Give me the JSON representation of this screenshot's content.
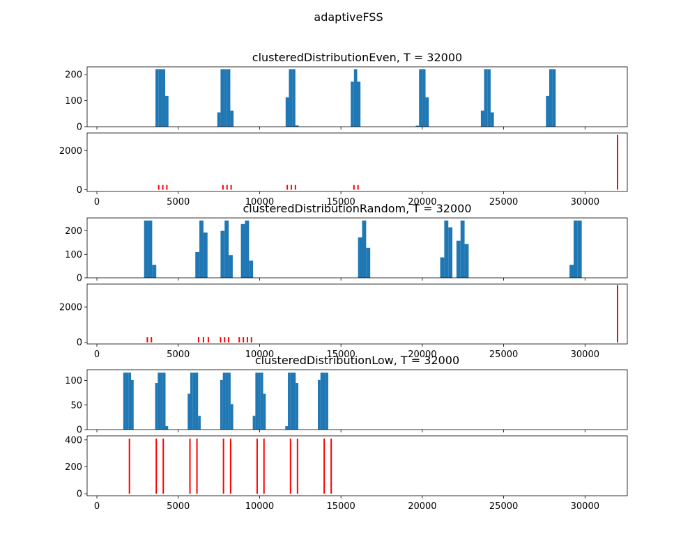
{
  "figure": {
    "suptitle": "adaptiveFSS"
  },
  "colors": {
    "bar": "#1f77b4",
    "stem": "#ff0000",
    "axis": "#000000"
  },
  "chart_data": [
    {
      "type": "bar",
      "title": "clusteredDistributionEven, T = 32000",
      "xlim": [
        -600,
        32600
      ],
      "ylim": [
        0,
        230
      ],
      "yticks": [
        0,
        100,
        200
      ],
      "xticks": [
        0,
        5000,
        10000,
        15000,
        20000,
        25000,
        30000
      ],
      "show_xtick_labels": false,
      "bin_width": 200,
      "bars": [
        {
          "x": 3600,
          "y": 221
        },
        {
          "x": 3800,
          "y": 221
        },
        {
          "x": 4000,
          "y": 221
        },
        {
          "x": 4200,
          "y": 118
        },
        {
          "x": 7400,
          "y": 55
        },
        {
          "x": 7600,
          "y": 221
        },
        {
          "x": 7800,
          "y": 221
        },
        {
          "x": 8000,
          "y": 221
        },
        {
          "x": 8200,
          "y": 62
        },
        {
          "x": 11600,
          "y": 113
        },
        {
          "x": 11800,
          "y": 221
        },
        {
          "x": 12000,
          "y": 221
        },
        {
          "x": 12200,
          "y": 5
        },
        {
          "x": 15600,
          "y": 173
        },
        {
          "x": 15800,
          "y": 221
        },
        {
          "x": 16000,
          "y": 173
        },
        {
          "x": 19600,
          "y": 4
        },
        {
          "x": 19800,
          "y": 221
        },
        {
          "x": 20000,
          "y": 221
        },
        {
          "x": 20200,
          "y": 113
        },
        {
          "x": 23600,
          "y": 62
        },
        {
          "x": 23800,
          "y": 221
        },
        {
          "x": 24000,
          "y": 221
        },
        {
          "x": 24200,
          "y": 55
        },
        {
          "x": 27600,
          "y": 118
        },
        {
          "x": 27800,
          "y": 221
        },
        {
          "x": 28000,
          "y": 221
        }
      ]
    },
    {
      "type": "stem",
      "xlim": [
        -600,
        32600
      ],
      "ylim": [
        -90,
        2900
      ],
      "yticks": [
        0,
        2000
      ],
      "xticks": [
        0,
        5000,
        10000,
        15000,
        20000,
        25000,
        30000
      ],
      "show_xtick_labels": true,
      "lines": [
        {
          "x": 3800,
          "y": 240
        },
        {
          "x": 4050,
          "y": 240
        },
        {
          "x": 4300,
          "y": 240
        },
        {
          "x": 7750,
          "y": 240
        },
        {
          "x": 8000,
          "y": 240
        },
        {
          "x": 8250,
          "y": 240
        },
        {
          "x": 11700,
          "y": 240
        },
        {
          "x": 11950,
          "y": 240
        },
        {
          "x": 12200,
          "y": 240
        },
        {
          "x": 15800,
          "y": 240
        },
        {
          "x": 16050,
          "y": 240
        },
        {
          "x": 32000,
          "y": 2800
        }
      ]
    },
    {
      "type": "bar",
      "title": "clusteredDistributionRandom, T = 32000",
      "xlim": [
        -600,
        32600
      ],
      "ylim": [
        0,
        255
      ],
      "yticks": [
        0,
        100,
        200
      ],
      "xticks": [
        0,
        5000,
        10000,
        15000,
        20000,
        25000,
        30000
      ],
      "show_xtick_labels": false,
      "bin_width": 250,
      "bars": [
        {
          "x": 2900,
          "y": 244
        },
        {
          "x": 3150,
          "y": 244
        },
        {
          "x": 3400,
          "y": 55
        },
        {
          "x": 6050,
          "y": 110
        },
        {
          "x": 6300,
          "y": 244
        },
        {
          "x": 6550,
          "y": 193
        },
        {
          "x": 7600,
          "y": 200
        },
        {
          "x": 7850,
          "y": 244
        },
        {
          "x": 8100,
          "y": 97
        },
        {
          "x": 8850,
          "y": 229
        },
        {
          "x": 9100,
          "y": 244
        },
        {
          "x": 9350,
          "y": 73
        },
        {
          "x": 16050,
          "y": 172
        },
        {
          "x": 16300,
          "y": 244
        },
        {
          "x": 16550,
          "y": 128
        },
        {
          "x": 21100,
          "y": 87
        },
        {
          "x": 21350,
          "y": 244
        },
        {
          "x": 21600,
          "y": 215
        },
        {
          "x": 22100,
          "y": 158
        },
        {
          "x": 22350,
          "y": 244
        },
        {
          "x": 22600,
          "y": 144
        },
        {
          "x": 29050,
          "y": 55
        },
        {
          "x": 29300,
          "y": 244
        },
        {
          "x": 29550,
          "y": 244
        }
      ]
    },
    {
      "type": "stem",
      "xlim": [
        -600,
        32600
      ],
      "ylim": [
        -90,
        3300
      ],
      "yticks": [
        0,
        2000
      ],
      "xticks": [
        0,
        5000,
        10000,
        15000,
        20000,
        25000,
        30000
      ],
      "show_xtick_labels": true,
      "lines": [
        {
          "x": 3100,
          "y": 300
        },
        {
          "x": 3350,
          "y": 300
        },
        {
          "x": 6250,
          "y": 300
        },
        {
          "x": 6550,
          "y": 300
        },
        {
          "x": 6850,
          "y": 300
        },
        {
          "x": 7600,
          "y": 300
        },
        {
          "x": 7850,
          "y": 300
        },
        {
          "x": 8100,
          "y": 300
        },
        {
          "x": 8750,
          "y": 300
        },
        {
          "x": 9000,
          "y": 300
        },
        {
          "x": 9250,
          "y": 300
        },
        {
          "x": 9500,
          "y": 300
        },
        {
          "x": 32000,
          "y": 3250
        }
      ]
    },
    {
      "type": "bar",
      "title": "clusteredDistributionLow, T = 32000",
      "xlim": [
        -600,
        32600
      ],
      "ylim": [
        0,
        122
      ],
      "yticks": [
        0,
        50,
        100
      ],
      "xticks": [
        0,
        5000,
        10000,
        15000,
        20000,
        25000,
        30000
      ],
      "show_xtick_labels": false,
      "bin_width": 160,
      "bars": [
        {
          "x": 1620,
          "y": 116
        },
        {
          "x": 1780,
          "y": 116
        },
        {
          "x": 1940,
          "y": 116
        },
        {
          "x": 2100,
          "y": 101
        },
        {
          "x": 3580,
          "y": 95
        },
        {
          "x": 3740,
          "y": 116
        },
        {
          "x": 3900,
          "y": 116
        },
        {
          "x": 4060,
          "y": 116
        },
        {
          "x": 4220,
          "y": 7
        },
        {
          "x": 5580,
          "y": 73
        },
        {
          "x": 5740,
          "y": 116
        },
        {
          "x": 5900,
          "y": 116
        },
        {
          "x": 6060,
          "y": 116
        },
        {
          "x": 6220,
          "y": 28
        },
        {
          "x": 7580,
          "y": 101
        },
        {
          "x": 7740,
          "y": 116
        },
        {
          "x": 7900,
          "y": 116
        },
        {
          "x": 8060,
          "y": 116
        },
        {
          "x": 8220,
          "y": 52
        },
        {
          "x": 9580,
          "y": 28
        },
        {
          "x": 9740,
          "y": 116
        },
        {
          "x": 9900,
          "y": 116
        },
        {
          "x": 10060,
          "y": 116
        },
        {
          "x": 10220,
          "y": 73
        },
        {
          "x": 11580,
          "y": 7
        },
        {
          "x": 11740,
          "y": 116
        },
        {
          "x": 11900,
          "y": 116
        },
        {
          "x": 12060,
          "y": 116
        },
        {
          "x": 12220,
          "y": 95
        },
        {
          "x": 13580,
          "y": 101
        },
        {
          "x": 13740,
          "y": 116
        },
        {
          "x": 13900,
          "y": 116
        },
        {
          "x": 14060,
          "y": 116
        }
      ]
    },
    {
      "type": "stem",
      "xlim": [
        -600,
        32600
      ],
      "ylim": [
        -15,
        430
      ],
      "yticks": [
        0,
        200,
        400
      ],
      "xticks": [
        0,
        5000,
        10000,
        15000,
        20000,
        25000,
        30000
      ],
      "show_xtick_labels": true,
      "lines": [
        {
          "x": 2000,
          "y": 410
        },
        {
          "x": 3650,
          "y": 410
        },
        {
          "x": 4080,
          "y": 410
        },
        {
          "x": 5720,
          "y": 410
        },
        {
          "x": 6150,
          "y": 410
        },
        {
          "x": 7780,
          "y": 410
        },
        {
          "x": 8220,
          "y": 410
        },
        {
          "x": 9850,
          "y": 410
        },
        {
          "x": 10270,
          "y": 410
        },
        {
          "x": 11900,
          "y": 410
        },
        {
          "x": 12330,
          "y": 410
        },
        {
          "x": 13970,
          "y": 410
        },
        {
          "x": 14400,
          "y": 410
        }
      ]
    }
  ]
}
